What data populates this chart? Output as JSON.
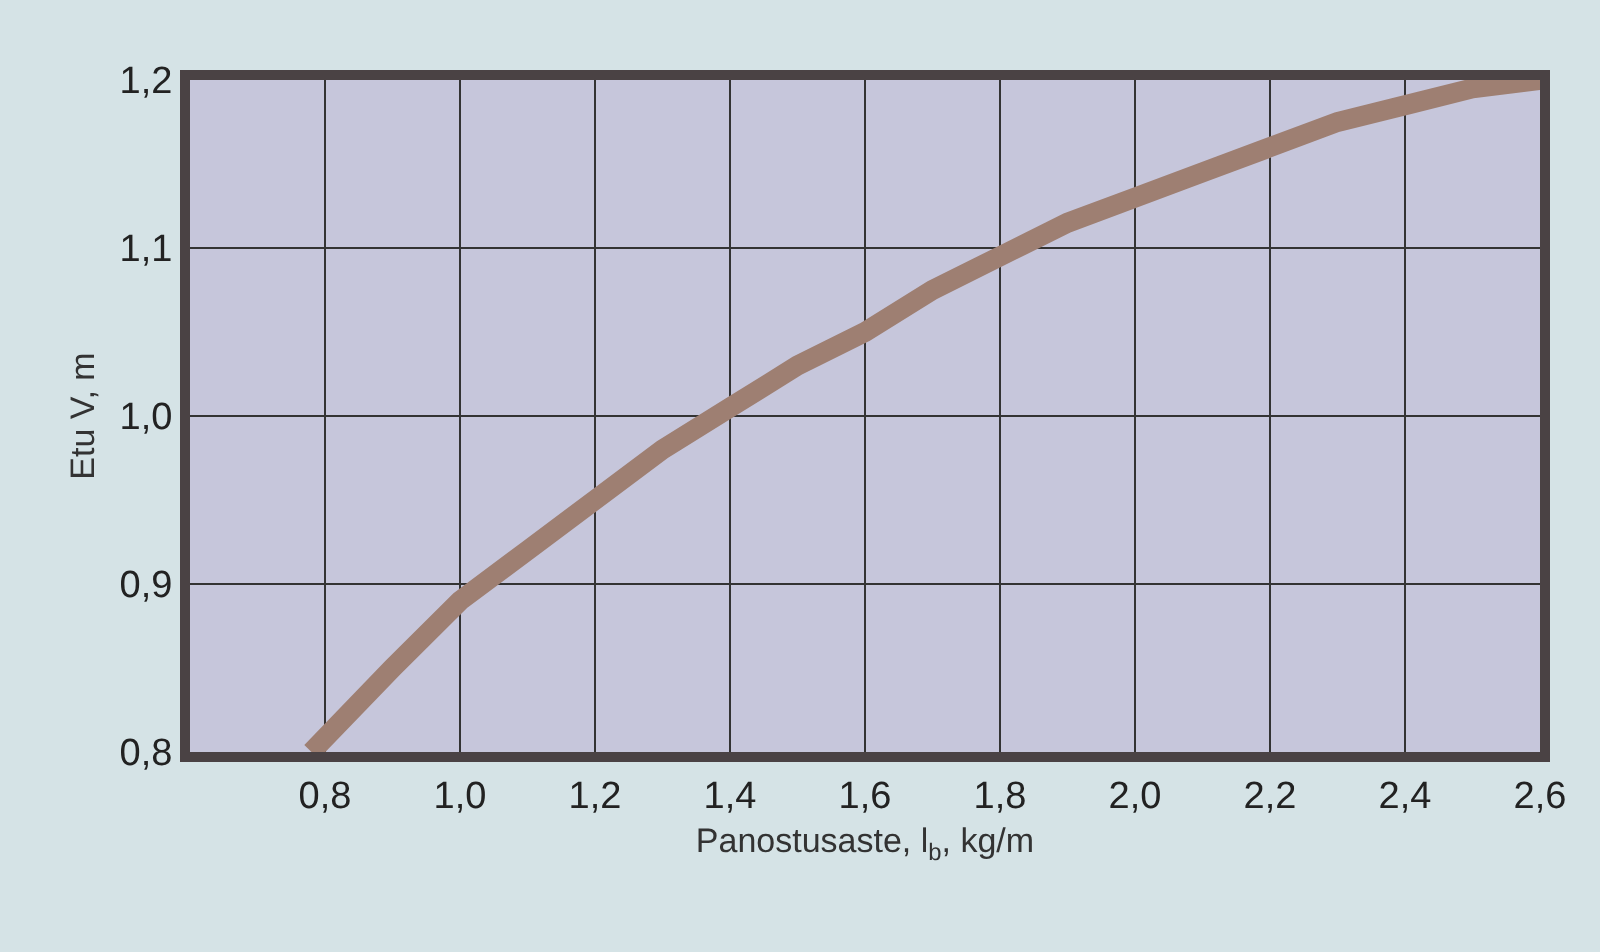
{
  "chart_data": {
    "type": "line",
    "xlabel": "Panostusaste, l$_{b}$, kg/m",
    "ylabel": "Etu V, m",
    "x": [
      0.78,
      0.9,
      1.0,
      1.1,
      1.2,
      1.3,
      1.4,
      1.5,
      1.6,
      1.7,
      1.8,
      1.9,
      2.0,
      2.1,
      2.2,
      2.3,
      2.4,
      2.5,
      2.6
    ],
    "series": [
      {
        "color": "#9e7f72",
        "values": [
          0.8,
          0.85,
          0.89,
          0.92,
          0.95,
          0.98,
          1.005,
          1.03,
          1.05,
          1.075,
          1.095,
          1.115,
          1.13,
          1.145,
          1.16,
          1.175,
          1.185,
          1.195,
          1.2
        ]
      }
    ],
    "xlim": [
      0.6,
      2.6
    ],
    "ylim": [
      0.8,
      1.2
    ],
    "xticks": [
      {
        "value": 0.8,
        "label": "0,8"
      },
      {
        "value": 1.0,
        "label": "1,0"
      },
      {
        "value": 1.2,
        "label": "1,2"
      },
      {
        "value": 1.4,
        "label": "1,4"
      },
      {
        "value": 1.6,
        "label": "1,6"
      },
      {
        "value": 1.8,
        "label": "1,8"
      },
      {
        "value": 2.0,
        "label": "2,0"
      },
      {
        "value": 2.2,
        "label": "2,2"
      },
      {
        "value": 2.4,
        "label": "2,4"
      },
      {
        "value": 2.6,
        "label": "2,6"
      }
    ],
    "yticks": [
      {
        "value": 0.8,
        "label": "0,8"
      },
      {
        "value": 0.9,
        "label": "0,9"
      },
      {
        "value": 1.0,
        "label": "1,0"
      },
      {
        "value": 1.1,
        "label": "1,1"
      },
      {
        "value": 1.2,
        "label": "1,2"
      }
    ],
    "grid": true,
    "legend": false,
    "marker": "none",
    "line_style": "solid"
  }
}
